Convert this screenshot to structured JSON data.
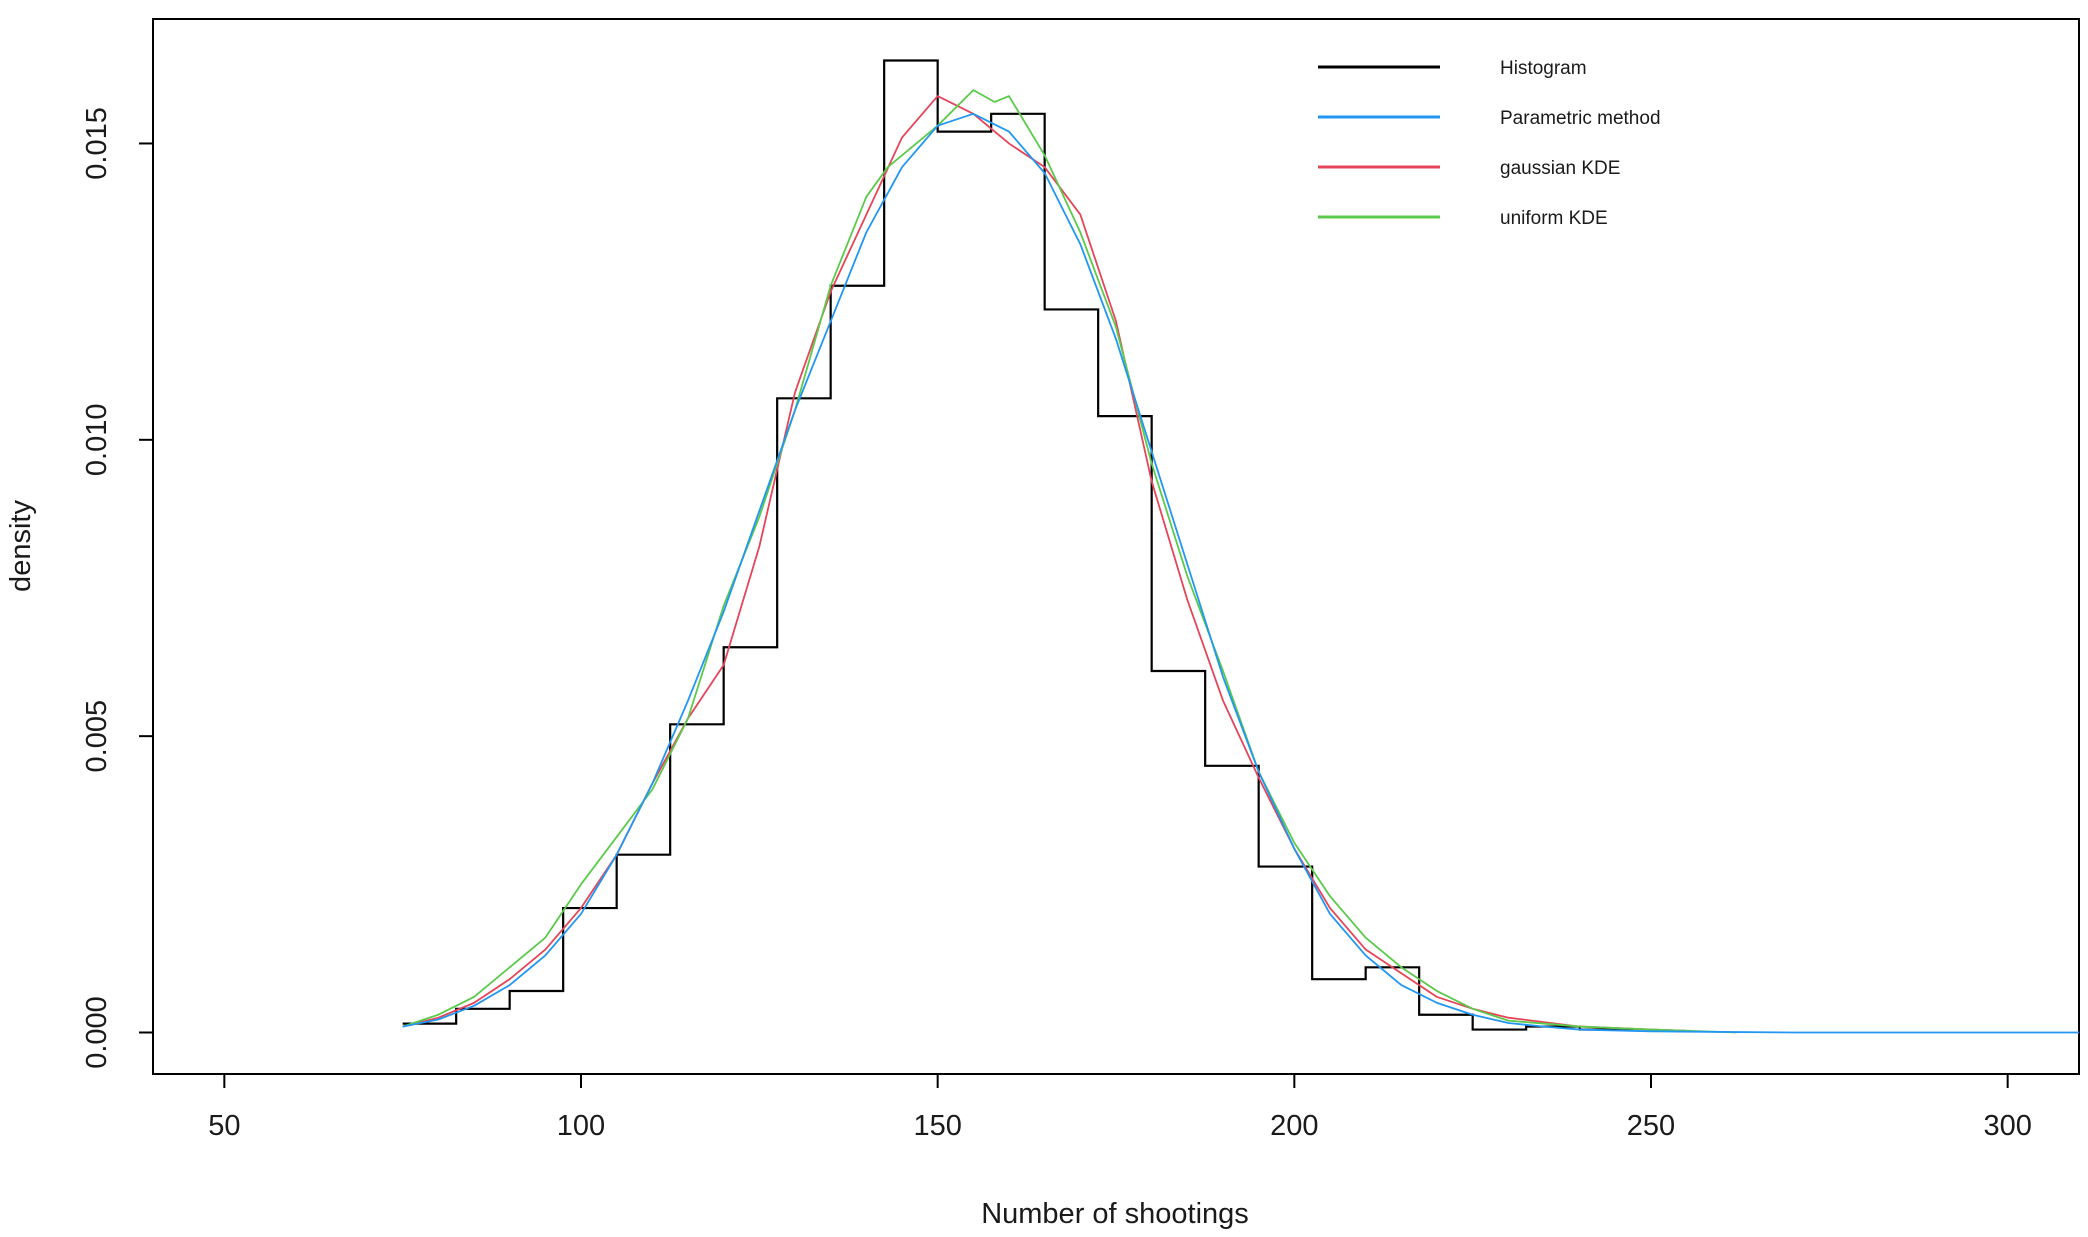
{
  "chart_data": {
    "type": "line",
    "title": "",
    "xlabel": "Number of shootings",
    "ylabel": "density",
    "xlim": [
      40,
      310
    ],
    "ylim": [
      -0.0007,
      0.0171
    ],
    "x_ticks": [
      50,
      100,
      150,
      200,
      250,
      300
    ],
    "x_tick_labels": [
      "50",
      "100",
      "150",
      "200",
      "250",
      "300"
    ],
    "y_ticks": [
      0.0,
      0.005,
      0.01,
      0.015
    ],
    "y_tick_labels": [
      "0.000",
      "0.005",
      "0.010",
      "0.015"
    ],
    "grid": false,
    "legend_position": "top-right",
    "colors": {
      "histogram": "#000000",
      "parametric": "#2196F3",
      "gaussian": "#E5455A",
      "uniform": "#5BC94A"
    },
    "histogram": {
      "name": "Histogram",
      "breaks": [
        75,
        82.5,
        90,
        97.5,
        105,
        112.5,
        120,
        127.5,
        135,
        142.5,
        150,
        157.5,
        165,
        172.5,
        180,
        187.5,
        195,
        202.5,
        210,
        217.5,
        225,
        232.5,
        240,
        247.5
      ],
      "density": [
        0.00015,
        0.0004,
        0.0007,
        0.0021,
        0.003,
        0.0052,
        0.0065,
        0.0107,
        0.0126,
        0.0164,
        0.0152,
        0.0155,
        0.0122,
        0.0104,
        0.0061,
        0.0045,
        0.0028,
        0.0009,
        0.0011,
        0.0003,
        5e-05,
        0.0001,
        5e-05
      ]
    },
    "series": [
      {
        "name": "Parametric method",
        "x": [
          75,
          80,
          85,
          90,
          95,
          100,
          105,
          110,
          115,
          120,
          125,
          130,
          135,
          140,
          145,
          150,
          155,
          160,
          165,
          170,
          175,
          180,
          185,
          190,
          195,
          200,
          205,
          210,
          215,
          220,
          225,
          230,
          235,
          240,
          250,
          260,
          270,
          280,
          290,
          300,
          310
        ],
        "y": [
          0.0001,
          0.00022,
          0.00045,
          0.0008,
          0.0013,
          0.002,
          0.003,
          0.0042,
          0.0056,
          0.0071,
          0.0088,
          0.0105,
          0.012,
          0.0135,
          0.0146,
          0.0153,
          0.0155,
          0.0152,
          0.0145,
          0.0133,
          0.0117,
          0.0098,
          0.0079,
          0.006,
          0.0044,
          0.0031,
          0.002,
          0.0013,
          0.0008,
          0.0005,
          0.0003,
          0.00016,
          0.0001,
          5e-05,
          2e-05,
          1e-05,
          0.0,
          0.0,
          0.0,
          0.0,
          0.0
        ]
      },
      {
        "name": "gaussian KDE",
        "x": [
          75,
          80,
          85,
          90,
          95,
          100,
          105,
          110,
          115,
          120,
          125,
          130,
          135,
          140,
          145,
          150,
          155,
          160,
          165,
          170,
          175,
          180,
          185,
          190,
          195,
          200,
          205,
          210,
          215,
          220,
          225,
          230,
          240,
          250,
          255
        ],
        "y": [
          0.0001,
          0.00025,
          0.0005,
          0.0009,
          0.0014,
          0.0021,
          0.003,
          0.0042,
          0.0053,
          0.0062,
          0.0082,
          0.0108,
          0.0125,
          0.0138,
          0.0151,
          0.0158,
          0.0155,
          0.015,
          0.0146,
          0.0138,
          0.012,
          0.0093,
          0.0073,
          0.0056,
          0.0043,
          0.0031,
          0.0021,
          0.0014,
          0.001,
          0.0006,
          0.0004,
          0.00025,
          0.0001,
          5e-05,
          3e-05
        ]
      },
      {
        "name": "uniform KDE",
        "x": [
          75,
          80,
          85,
          90,
          95,
          100,
          105,
          110,
          115,
          120,
          125,
          130,
          135,
          140,
          143,
          146,
          150,
          155,
          158,
          160,
          165,
          170,
          175,
          180,
          185,
          190,
          195,
          200,
          205,
          210,
          215,
          220,
          225,
          230,
          240,
          250,
          262
        ],
        "y": [
          0.0001,
          0.0003,
          0.0006,
          0.0011,
          0.0016,
          0.0025,
          0.0033,
          0.0041,
          0.0053,
          0.0072,
          0.0087,
          0.0105,
          0.0126,
          0.0141,
          0.0146,
          0.0149,
          0.0153,
          0.0159,
          0.0157,
          0.0158,
          0.0148,
          0.0135,
          0.0119,
          0.0096,
          0.0077,
          0.0061,
          0.0044,
          0.0032,
          0.0023,
          0.0016,
          0.0011,
          0.0007,
          0.0004,
          0.0002,
          0.0001,
          5e-05,
          0.0
        ]
      }
    ]
  }
}
